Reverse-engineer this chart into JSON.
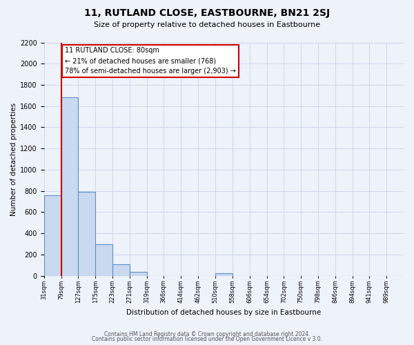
{
  "title": "11, RUTLAND CLOSE, EASTBOURNE, BN21 2SJ",
  "subtitle": "Size of property relative to detached houses in Eastbourne",
  "xlabel": "Distribution of detached houses by size in Eastbourne",
  "ylabel": "Number of detached properties",
  "bin_labels": [
    "31sqm",
    "79sqm",
    "127sqm",
    "175sqm",
    "223sqm",
    "271sqm",
    "319sqm",
    "366sqm",
    "414sqm",
    "462sqm",
    "510sqm",
    "558sqm",
    "606sqm",
    "654sqm",
    "702sqm",
    "750sqm",
    "798sqm",
    "846sqm",
    "894sqm",
    "941sqm",
    "989sqm"
  ],
  "bar_values": [
    760,
    1680,
    790,
    295,
    110,
    35,
    0,
    0,
    0,
    0,
    25,
    0,
    0,
    0,
    0,
    0,
    0,
    0,
    0,
    0,
    0
  ],
  "bin_edges": [
    31,
    79,
    127,
    175,
    223,
    271,
    319,
    366,
    414,
    462,
    510,
    558,
    606,
    654,
    702,
    750,
    798,
    846,
    894,
    941,
    989,
    1037
  ],
  "bar_color": "#c9d9f0",
  "bar_edge_color": "#5b8fc9",
  "property_line_x": 80,
  "property_line_color": "#cc0000",
  "ylim": [
    0,
    2200
  ],
  "yticks": [
    0,
    200,
    400,
    600,
    800,
    1000,
    1200,
    1400,
    1600,
    1800,
    2000,
    2200
  ],
  "annotation_title": "11 RUTLAND CLOSE: 80sqm",
  "annotation_line1": "← 21% of detached houses are smaller (768)",
  "annotation_line2": "78% of semi-detached houses are larger (2,903) →",
  "annotation_box_color": "#ffffff",
  "annotation_box_edge": "#cc0000",
  "footer1": "Contains HM Land Registry data © Crown copyright and database right 2024.",
  "footer2": "Contains public sector information licensed under the Open Government Licence v 3.0.",
  "bg_color": "#eef2f9",
  "grid_color": "#c8d4e8"
}
